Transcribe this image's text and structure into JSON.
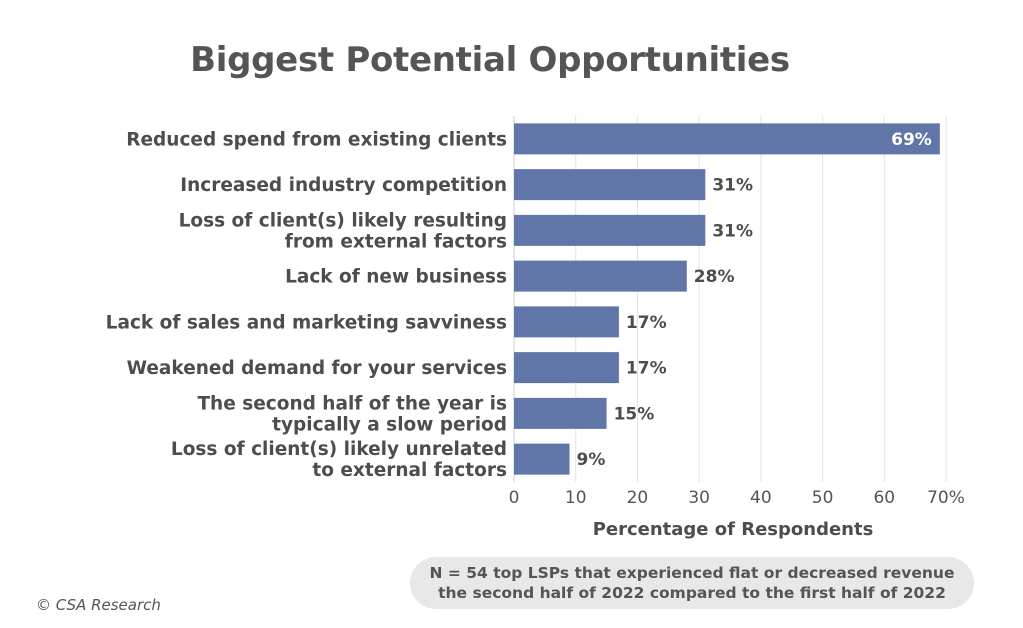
{
  "chart_data": {
    "type": "bar",
    "orientation": "horizontal",
    "title": "Biggest Potential Opportunities",
    "categories": [
      [
        "Reduced spend from existing clients"
      ],
      [
        "Increased industry competition"
      ],
      [
        "Loss of client(s) likely resulting",
        "from external factors"
      ],
      [
        "Lack of new business"
      ],
      [
        "Lack of sales and marketing savviness"
      ],
      [
        "Weakened demand for your services"
      ],
      [
        "The second half of the year is",
        "typically a slow period"
      ],
      [
        "Loss of client(s) likely unrelated",
        "to external factors"
      ]
    ],
    "values": [
      69,
      31,
      31,
      28,
      17,
      17,
      15,
      9
    ],
    "value_labels": [
      "69%",
      "31%",
      "31%",
      "28%",
      "17%",
      "17%",
      "15%",
      "9%"
    ],
    "xlabel": "Percentage of Respondents",
    "xlim": [
      0,
      70
    ],
    "xticks": [
      "0",
      "10",
      "20",
      "30",
      "40",
      "50",
      "60",
      "70%"
    ],
    "grid": true,
    "bar_color": "#6075a8"
  },
  "footnote": {
    "line1": "N = 54 top LSPs that experienced flat or decreased revenue",
    "line2": "the second half of 2022 compared to the first half of 2022"
  },
  "copyright": "© CSA Research"
}
